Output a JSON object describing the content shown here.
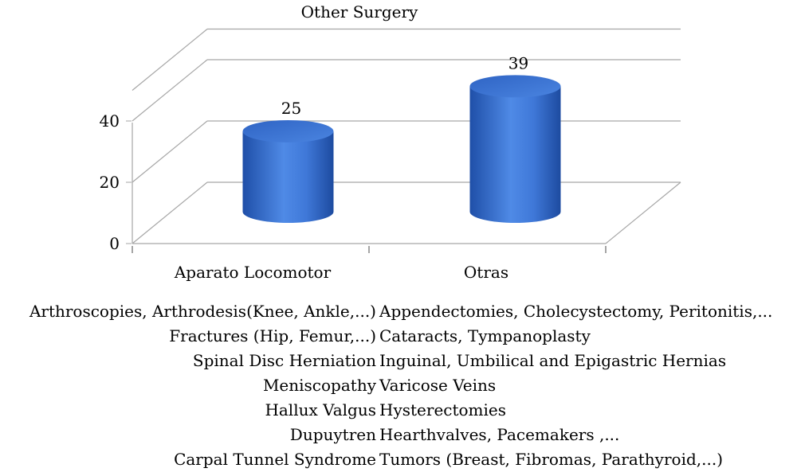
{
  "chart_data": {
    "type": "bar",
    "title": "Other Surgery",
    "categories": [
      "Aparato Locomotor",
      "Otras"
    ],
    "values": [
      25,
      39
    ],
    "ylim": [
      0,
      40
    ],
    "yticks": [
      0,
      20,
      40
    ],
    "ytick_labels": [
      "0",
      "20",
      "40"
    ],
    "data_labels": [
      "25",
      "39"
    ],
    "bar_color": "#3f78d8",
    "grid": true
  },
  "notes": {
    "aparato_locomotor": [
      "Arthroscopies, Arthrodesis(Knee, Ankle,...)",
      "Fractures (Hip, Femur,...)",
      "Spinal Disc Herniation",
      "Meniscopathy",
      "Hallux Valgus",
      "Dupuytren",
      "Carpal Tunnel Syndrome"
    ],
    "otras": [
      "Appendectomies, Cholecystectomy, Peritonitis,...",
      "Cataracts, Tympanoplasty",
      "Inguinal, Umbilical and Epigastric Hernias",
      "Varicose Veins",
      "Hysterectomies",
      "Hearthvalves, Pacemakers ,...",
      "Tumors (Breast, Fibromas, Parathyroid,...)"
    ]
  }
}
